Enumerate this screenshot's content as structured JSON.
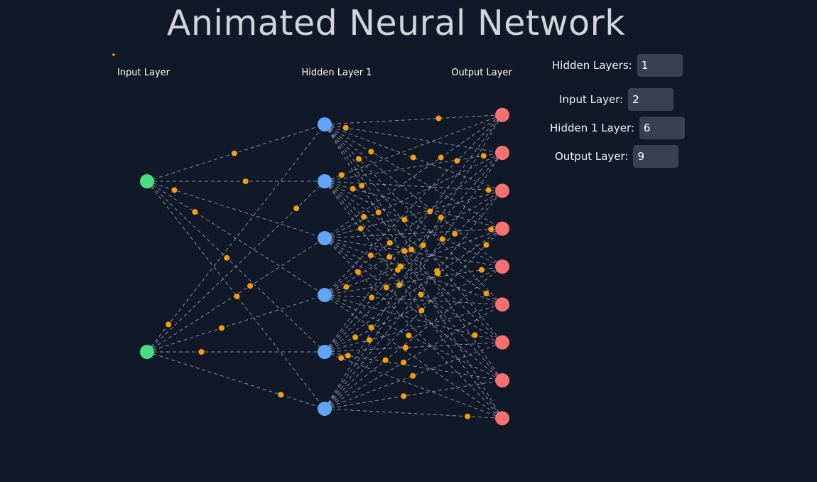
{
  "page": {
    "title": "Animated Neural Network"
  },
  "controls": {
    "hidden_layers": {
      "label": "Hidden Layers:",
      "value": "1"
    },
    "input_layer": {
      "label": "Input Layer:",
      "value": "2"
    },
    "hidden1_layer": {
      "label": "Hidden 1 Layer:",
      "value": "6"
    },
    "output_layer": {
      "label": "Output Layer:",
      "value": "9"
    }
  },
  "network": {
    "layers": [
      {
        "name": "Input Layer",
        "neurons": 2,
        "color": "#4ade80"
      },
      {
        "name": "Hidden Layer 1",
        "neurons": 6,
        "color": "#60a5fa"
      },
      {
        "name": "Output Layer",
        "neurons": 9,
        "color": "#f87171"
      }
    ],
    "connection_color": "#9ca3af",
    "signal_color": "#f59e0b"
  }
}
